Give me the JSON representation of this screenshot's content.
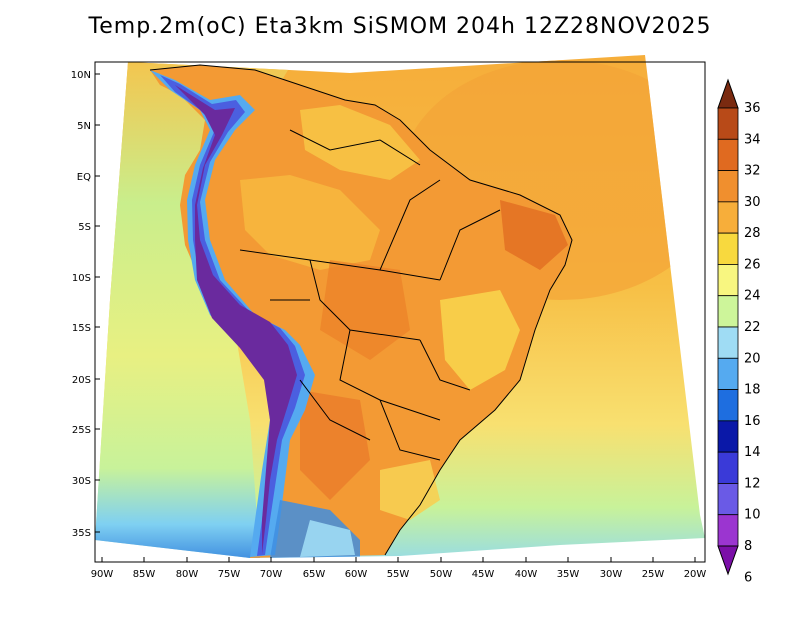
{
  "map": {
    "title": "Temp.2m(oC) Eta3km SiSMOM 204h 12Z28NOV2025",
    "lat_labels": [
      "10N",
      "5N",
      "EQ",
      "5S",
      "10S",
      "15S",
      "20S",
      "25S",
      "30S",
      "35S"
    ],
    "lon_labels": [
      "90W",
      "85W",
      "80W",
      "75W",
      "70W",
      "65W",
      "60W",
      "55W",
      "50W",
      "45W",
      "40W",
      "35W",
      "30W",
      "25W",
      "20W"
    ]
  },
  "colorbar": {
    "levels": [
      "6",
      "8",
      "10",
      "12",
      "14",
      "16",
      "18",
      "20",
      "22",
      "24",
      "26",
      "28",
      "30",
      "32",
      "34",
      "36"
    ],
    "colors": [
      "#7b0fa8",
      "#9b35d0",
      "#6a5ae6",
      "#3a3ad8",
      "#0a18a8",
      "#1e6ee0",
      "#55aaf0",
      "#9fdcf4",
      "#cdf59a",
      "#f8f680",
      "#f8d93e",
      "#f7ae3a",
      "#f08f2e",
      "#e06a20",
      "#b84a18",
      "#7a2a10"
    ]
  },
  "colors": {
    "ocean_north": "#f6ad3a",
    "ocean_mid": "#f7cf52",
    "ocean_south": "#f2f28a",
    "land": "#f39a34",
    "andes": "#6a2a9e"
  }
}
